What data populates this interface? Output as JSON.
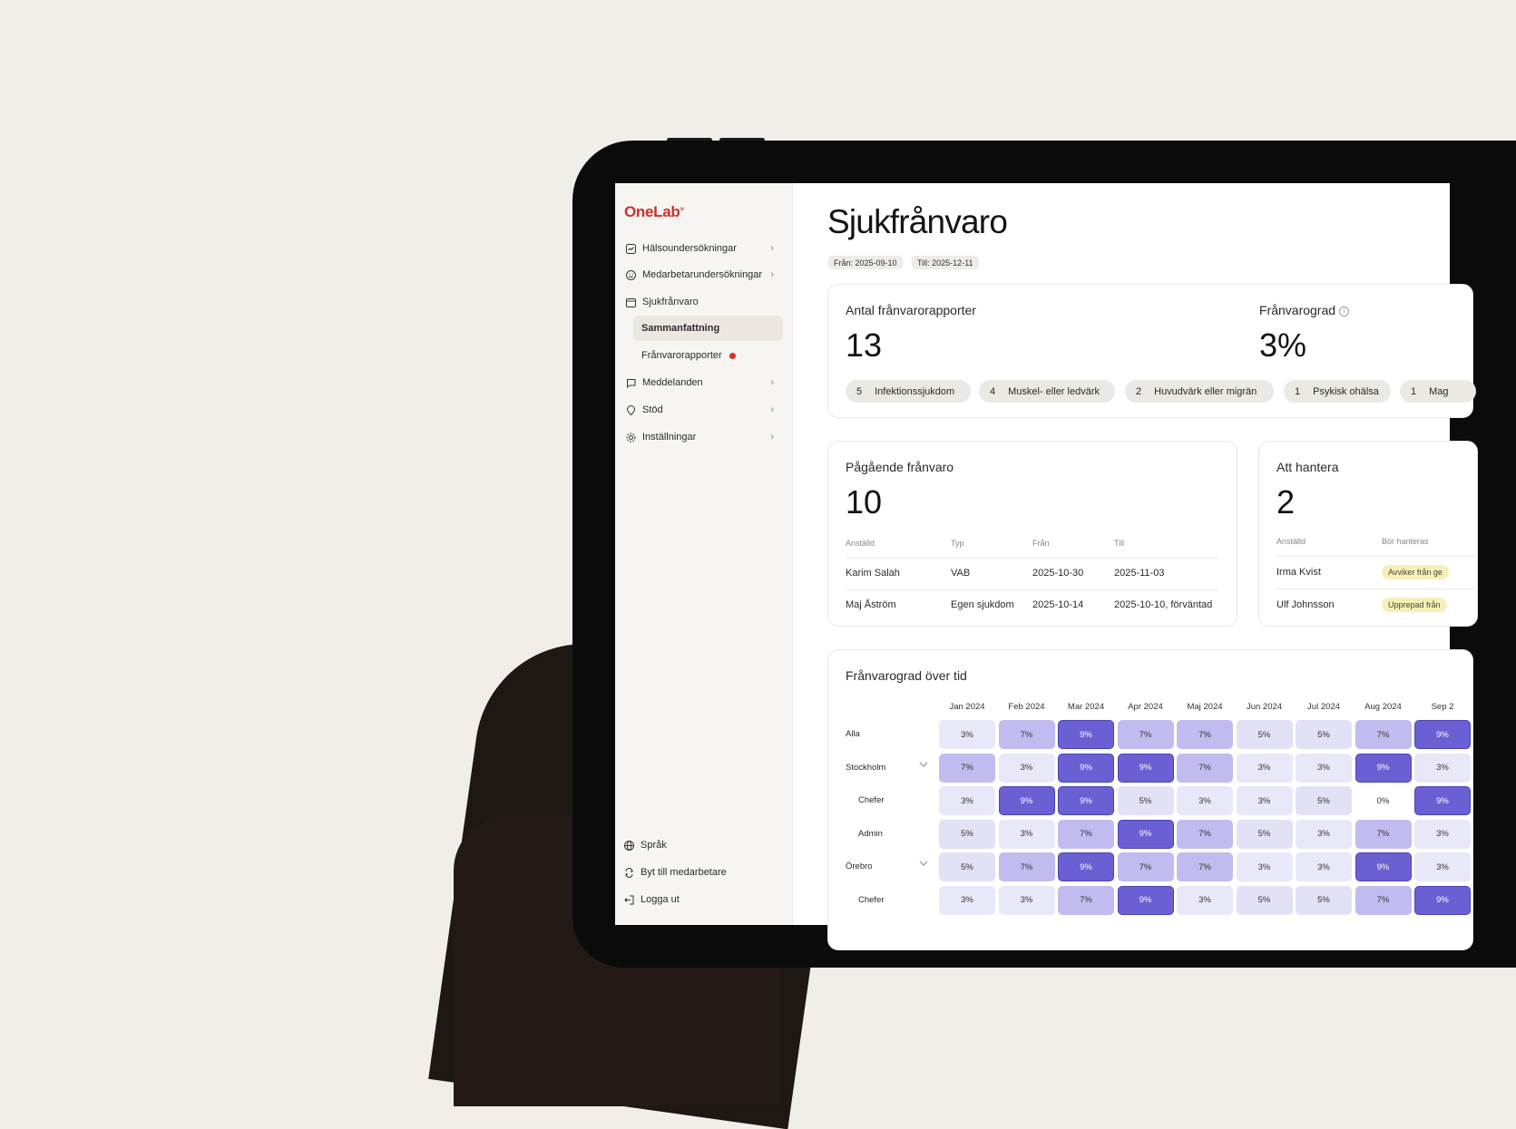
{
  "app": {
    "logo": "OneLab",
    "logo_mark": "®"
  },
  "sidebar": {
    "items": [
      {
        "label": "Hälsoundersökningar",
        "icon": "chart-icon"
      },
      {
        "label": "Medarbetarundersökningar",
        "icon": "smiley-icon"
      },
      {
        "label": "Sjukfrånvaro",
        "icon": "calendar-icon"
      },
      {
        "label": "Meddelanden",
        "icon": "chat-icon"
      },
      {
        "label": "Stöd",
        "icon": "pin-icon"
      },
      {
        "label": "Inställningar",
        "icon": "gear-icon"
      }
    ],
    "sub_items": [
      {
        "label": "Sammanfattning"
      },
      {
        "label": "Frånvarorapporter"
      }
    ],
    "bottom": [
      {
        "label": "Språk",
        "icon": "globe-icon"
      },
      {
        "label": "Byt till medarbetare",
        "icon": "swap-icon"
      },
      {
        "label": "Logga ut",
        "icon": "logout-icon"
      }
    ]
  },
  "page": {
    "title": "Sjukfrånvaro",
    "from_chip": "Från: 2025-09-10",
    "to_chip": "Till: 2025-12-11"
  },
  "reports": {
    "title": "Antal frånvarorapporter",
    "value": "13",
    "rate_title": "Frånvarograd",
    "rate_value": "3%",
    "pills": [
      {
        "count": "5",
        "label": "Infektionssjukdom"
      },
      {
        "count": "4",
        "label": "Muskel- eller ledvärk"
      },
      {
        "count": "2",
        "label": "Huvudvärk eller migrän"
      },
      {
        "count": "1",
        "label": "Psykisk ohälsa"
      },
      {
        "count": "1",
        "label": "Mag"
      }
    ]
  },
  "ongoing": {
    "title": "Pågående frånvaro",
    "value": "10",
    "headers": {
      "employee": "Anställd",
      "type": "Typ",
      "from": "Från",
      "to": "Till"
    },
    "rows": [
      {
        "employee": "Karim Salah",
        "type": "VAB",
        "from": "2025-10-30",
        "to": "2025-11-03"
      },
      {
        "employee": "Maj Åström",
        "type": "Egen sjukdom",
        "from": "2025-10-14",
        "to": "2025-10-10, förväntad"
      }
    ]
  },
  "handle": {
    "title": "Att hantera",
    "value": "2",
    "headers": {
      "employee": "Anställd",
      "should": "Bör hanteras"
    },
    "rows": [
      {
        "employee": "Irma Kvist",
        "tag": "Avviker från ge"
      },
      {
        "employee": "Ulf Johnsson",
        "tag": "Upprepad från"
      }
    ]
  },
  "chart_data": {
    "type": "heatmap",
    "title": "Frånvarograd över tid",
    "columns": [
      "Jan 2024",
      "Feb 2024",
      "Mar 2024",
      "Apr 2024",
      "Maj 2024",
      "Jun 2024",
      "Jul 2024",
      "Aug 2024",
      "Sep 2"
    ],
    "rows": [
      {
        "label": "Alla",
        "indent": false,
        "expandable": false,
        "values": [
          3,
          7,
          9,
          7,
          7,
          5,
          5,
          7,
          9
        ],
        "texts": [
          "3%",
          "7%",
          "9%",
          "7%",
          "7%",
          "5%",
          "5%",
          "7%",
          "9%"
        ]
      },
      {
        "label": "Stockholm",
        "indent": false,
        "expandable": true,
        "values": [
          7,
          3,
          9,
          9,
          7,
          3,
          3,
          9,
          3
        ],
        "texts": [
          "7%",
          "3%",
          "9%",
          "9%",
          "7%",
          "3%",
          "3%",
          "9%",
          "3%"
        ]
      },
      {
        "label": "Chefer",
        "indent": true,
        "expandable": false,
        "values": [
          3,
          9,
          9,
          5,
          3,
          3,
          5,
          0,
          9
        ],
        "texts": [
          "3%",
          "9%",
          "9%",
          "5%",
          "3%",
          "3%",
          "5%",
          "0%",
          "9%"
        ]
      },
      {
        "label": "Admin",
        "indent": true,
        "expandable": false,
        "values": [
          5,
          3,
          7,
          9,
          7,
          5,
          3,
          7,
          3
        ],
        "texts": [
          "5%",
          "3%",
          "7%",
          "9%",
          "7%",
          "5%",
          "3%",
          "7%",
          "3%"
        ]
      },
      {
        "label": "Örebro",
        "indent": false,
        "expandable": true,
        "values": [
          5,
          7,
          9,
          7,
          7,
          3,
          3,
          9,
          3
        ],
        "texts": [
          "5%",
          "7%",
          "9%",
          "7%",
          "7%",
          "3%",
          "3%",
          "9%",
          "3%"
        ]
      },
      {
        "label": "Chefer",
        "indent": true,
        "expandable": false,
        "values": [
          3,
          3,
          7,
          9,
          3,
          5,
          5,
          7,
          9
        ],
        "texts": [
          "3%",
          "3%",
          "7%",
          "9%",
          "3%",
          "5%",
          "5%",
          "7%",
          "9%"
        ]
      }
    ],
    "colors": {
      "0": "#ffffff",
      "3": "#e9e8f8",
      "5": "#e2e1f6",
      "7": "#c0bcef",
      "9": "#6a60d3"
    }
  }
}
